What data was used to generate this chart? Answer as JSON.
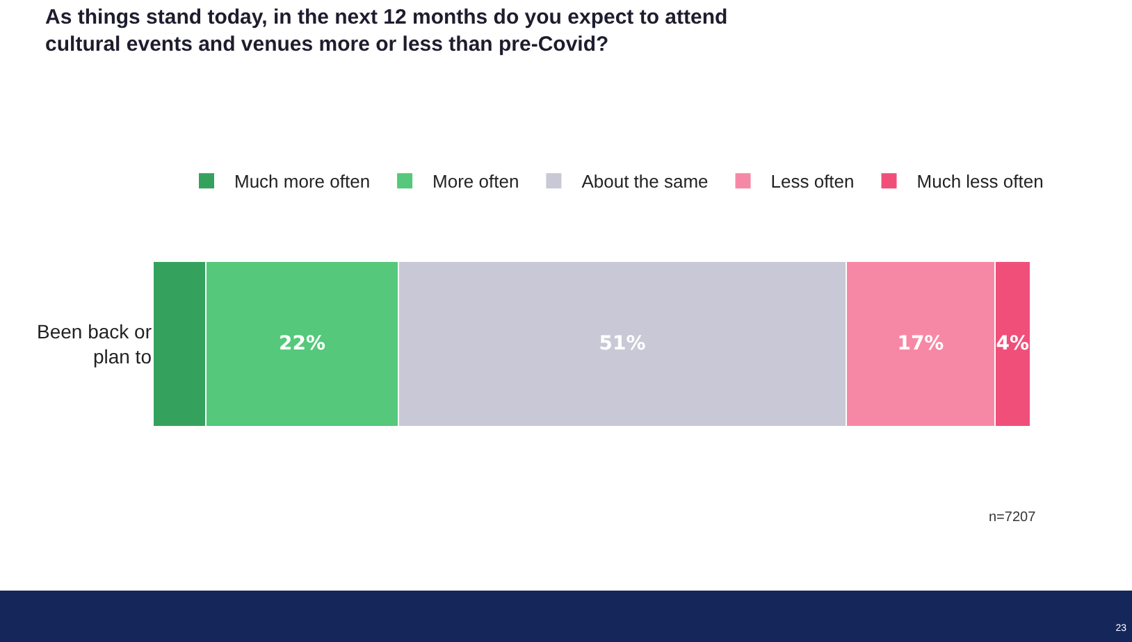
{
  "chart_data": {
    "type": "bar",
    "orientation": "horizontal",
    "stacked": true,
    "title": "As things stand today, in the next 12 months do you expect to attend cultural events and venues more or less than pre-Covid?",
    "categories": [
      "Been back or plan to"
    ],
    "series": [
      {
        "name": "Much more often",
        "color": "#34a25d",
        "values": [
          6
        ],
        "value_labels": [
          null
        ]
      },
      {
        "name": "More often",
        "color": "#55c87b",
        "values": [
          22
        ],
        "value_labels": [
          "22%"
        ]
      },
      {
        "name": "About the same",
        "color": "#c9c8d6",
        "values": [
          51
        ],
        "value_labels": [
          "51%"
        ]
      },
      {
        "name": "Less often",
        "color": "#f788a5",
        "values": [
          17
        ],
        "value_labels": [
          "17%"
        ]
      },
      {
        "name": "Much less often",
        "color": "#f04f7a",
        "values": [
          4
        ],
        "value_labels": [
          "4%"
        ]
      }
    ],
    "legend": "top",
    "annotations": [
      "n=7207",
      "23"
    ]
  }
}
